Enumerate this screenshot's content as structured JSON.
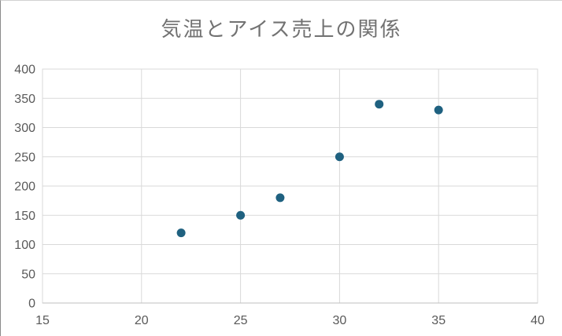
{
  "window": {
    "background": "#ffffff",
    "frame_left_color": "#8a8a8a",
    "frame_top_color": "#d2d2d2"
  },
  "chart_data": {
    "type": "scatter",
    "title": "気温とアイス売上の関係",
    "xlabel": "",
    "ylabel": "",
    "x": [
      22,
      25,
      27,
      30,
      32,
      35
    ],
    "y": [
      120,
      150,
      180,
      250,
      340,
      330
    ],
    "xlim": [
      15,
      40
    ],
    "ylim": [
      0,
      400
    ],
    "xticks": [
      "15",
      "20",
      "25",
      "30",
      "35",
      "40"
    ],
    "yticks": [
      "0",
      "50",
      "100",
      "150",
      "200",
      "250",
      "300",
      "350",
      "400"
    ],
    "grid": true,
    "legend": "none"
  },
  "style": {
    "marker_color": "#1f6180",
    "marker_radius": 5.5,
    "gridline_color": "#d9d9d9",
    "plot_border_color": "#d9d9d9",
    "axis_line_color": "#bfbfbf",
    "title_color": "#727272",
    "tick_label_color": "#595959"
  }
}
